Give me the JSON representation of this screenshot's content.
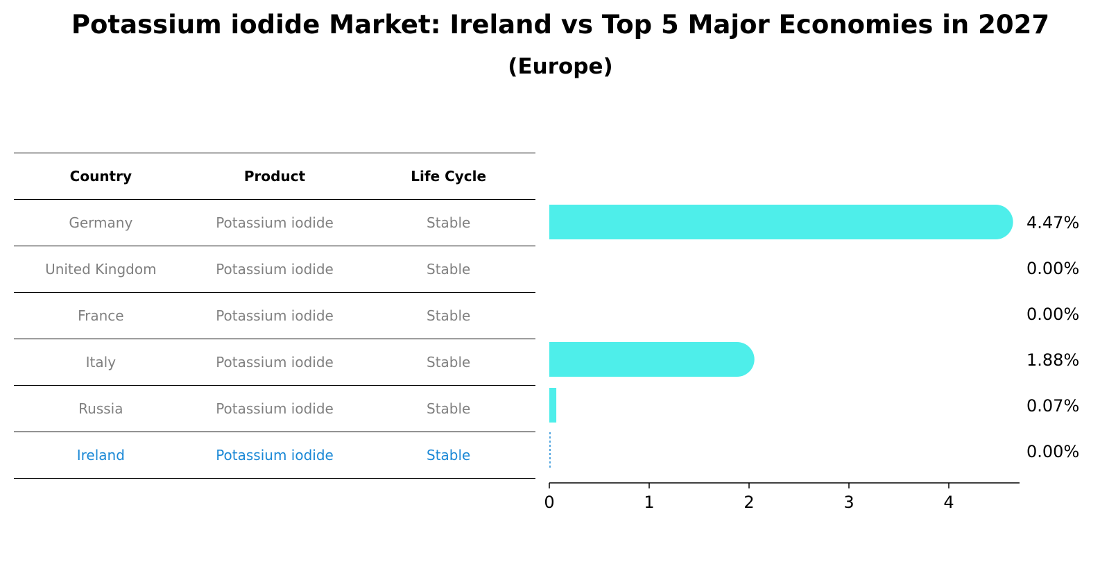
{
  "title": "Potassium iodide Market: Ireland vs Top 5 Major Economies in 2027",
  "subtitle": "(Europe)",
  "table": {
    "headers": [
      "Country",
      "Product",
      "Life Cycle"
    ],
    "rows": [
      [
        "Germany",
        "Potassium iodide",
        "Stable"
      ],
      [
        "United Kingdom",
        "Potassium iodide",
        "Stable"
      ],
      [
        "France",
        "Potassium iodide",
        "Stable"
      ],
      [
        "Italy",
        "Potassium iodide",
        "Stable"
      ],
      [
        "Russia",
        "Potassium iodide",
        "Stable"
      ],
      [
        "Ireland",
        "Potassium iodide",
        "Stable"
      ]
    ]
  },
  "colors": {
    "bar": "#4eeeea",
    "highlight": "#1a88d6",
    "text_muted": "#808080"
  },
  "chart_data": {
    "type": "bar",
    "orientation": "horizontal",
    "categories": [
      "Germany",
      "United Kingdom",
      "France",
      "Italy",
      "Russia",
      "Ireland"
    ],
    "values": [
      4.47,
      0.0,
      0.0,
      1.88,
      0.07,
      0.0
    ],
    "value_labels": [
      "4.47%",
      "0.00%",
      "0.00%",
      "1.88%",
      "0.07%",
      "0.00%"
    ],
    "highlight": "Ireland",
    "xlim": [
      0,
      4.7
    ],
    "xticks": [
      0,
      1,
      2,
      3,
      4
    ],
    "xtick_labels": [
      "0",
      "1",
      "2",
      "3",
      "4"
    ]
  }
}
